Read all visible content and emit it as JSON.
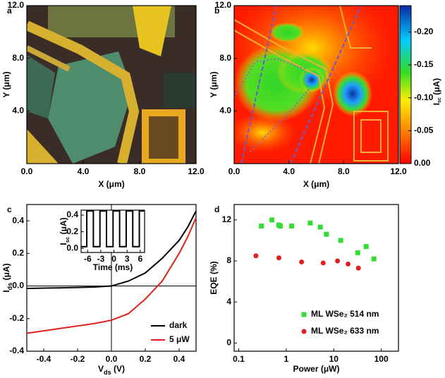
{
  "chart_data": [
    {
      "type": "image",
      "panel": "a",
      "xlabel": "X (μm)",
      "ylabel": "Y (μm)",
      "xlim": [
        0,
        12
      ],
      "ylim": [
        0,
        12
      ],
      "xticks": [
        {
          "value": 0,
          "label": "0.0"
        },
        {
          "value": 4,
          "label": "4.0"
        },
        {
          "value": 8,
          "label": "8.0"
        },
        {
          "value": 12,
          "label": "12.0"
        }
      ],
      "yticks": [
        {
          "value": 4,
          "label": "4.0"
        },
        {
          "value": 8,
          "label": "8.0"
        },
        {
          "value": 12,
          "label": "12.0"
        }
      ]
    },
    {
      "type": "heatmap",
      "panel": "b",
      "xlabel": "X (μm)",
      "ylabel": "Y (μm)",
      "xlim": [
        0,
        12
      ],
      "ylim": [
        0,
        12
      ],
      "xticks": [
        {
          "value": 0,
          "label": "0.0"
        },
        {
          "value": 4,
          "label": "4.0"
        },
        {
          "value": 8,
          "label": "8.0"
        },
        {
          "value": 12,
          "label": "12.0"
        }
      ],
      "yticks": [
        {
          "value": 4,
          "label": "4.0"
        },
        {
          "value": 8,
          "label": "8.0"
        },
        {
          "value": 12,
          "label": "12.0"
        }
      ],
      "clim": [
        0,
        -0.24
      ],
      "cticks": [
        {
          "value": 0,
          "label": "0.00"
        },
        {
          "value": -0.05,
          "label": "-0.05"
        },
        {
          "value": -0.1,
          "label": "-0.10"
        },
        {
          "value": -0.15,
          "label": "-0.15"
        },
        {
          "value": -0.2,
          "label": "-0.20"
        }
      ],
      "colorbar_label": {
        "text": "I",
        "sub": "sc",
        "unit": " (μA)"
      }
    },
    {
      "type": "line",
      "panel": "c",
      "xlabel": {
        "text": "V",
        "sub": "ds",
        "unit": " (V)"
      },
      "ylabel": {
        "text": "I",
        "sub": "ds",
        "unit": " (μA)"
      },
      "xlim": [
        -0.5,
        0.5
      ],
      "ylim": [
        -0.4,
        0.5
      ],
      "xticks": [
        -0.4,
        -0.2,
        {
          "value": 0,
          "label": "0.0"
        },
        0.2,
        0.4
      ],
      "yticks": [
        -0.4,
        -0.2,
        {
          "value": 0,
          "label": "0.0"
        },
        0.2,
        0.4
      ],
      "ref_lines": {
        "x": 0,
        "y": 0
      },
      "x": [
        -0.5,
        -0.4,
        -0.3,
        -0.2,
        -0.1,
        0,
        0.1,
        0.2,
        0.3,
        0.4,
        0.45,
        0.5
      ],
      "series": [
        {
          "name": "dark",
          "color": "#000000",
          "values": [
            -0.015,
            -0.013,
            -0.011,
            -0.009,
            -0.006,
            0,
            0.03,
            0.08,
            0.17,
            0.28,
            0.36,
            0.46
          ]
        },
        {
          "name": "5 μW",
          "color": "#e0201b",
          "values": [
            -0.29,
            -0.275,
            -0.26,
            -0.245,
            -0.23,
            -0.21,
            -0.17,
            -0.08,
            0.03,
            0.2,
            0.3,
            0.42
          ]
        }
      ],
      "legend": "lower right",
      "inset": {
        "type": "line",
        "xlabel": "Time (ms)",
        "ylabel": {
          "text": "I",
          "sub": "sc",
          "unit": " (μA)"
        },
        "xlim": [
          -7.5,
          7
        ],
        "ylim": [
          -0.05,
          0.46
        ],
        "xticks": [
          -6,
          -3,
          0,
          3,
          6
        ],
        "yticks": [
          {
            "value": 0,
            "label": "0.0"
          },
          0.2,
          0.4
        ],
        "x": [
          -7.5,
          -6.2,
          -6.2,
          -4.7,
          -4.7,
          -3.2,
          -3.2,
          -1.7,
          -1.7,
          -0.2,
          -0.2,
          1.3,
          1.3,
          2.8,
          2.8,
          4.3,
          4.3,
          5.8,
          5.8,
          7
        ],
        "series": [
          {
            "color": "#000000",
            "values": [
              0.02,
              0.02,
              0.45,
              0.45,
              0.02,
              0.02,
              0.45,
              0.45,
              0.02,
              0.02,
              0.45,
              0.45,
              0.02,
              0.02,
              0.45,
              0.45,
              0.02,
              0.02,
              0.45,
              0.45
            ]
          }
        ]
      }
    },
    {
      "type": "scatter",
      "panel": "d",
      "xlabel": "Power (μW)",
      "ylabel": "EQE (%)",
      "xscale": "log",
      "xlim": [
        0.08,
        230
      ],
      "ylim": [
        -0.8,
        13.5
      ],
      "xticks": [
        0.1,
        1,
        10,
        100
      ],
      "yticks": [
        0,
        4,
        8,
        12
      ],
      "series": [
        {
          "name": "ML WSe₂ 514 nm",
          "color": "#33dd33",
          "marker": "square",
          "x": [
            0.3,
            0.5,
            0.7,
            0.75,
            1.3,
            3.2,
            5.2,
            7,
            14,
            32,
            48,
            70
          ],
          "values": [
            11.4,
            12.0,
            11.5,
            11.4,
            11.4,
            11.7,
            11.3,
            10.6,
            10.0,
            8.8,
            9.4,
            8.2
          ]
        },
        {
          "name": "ML WSe₂ 633 nm",
          "color": "#e02020",
          "marker": "circle",
          "x": [
            0.23,
            0.7,
            2.1,
            6,
            12,
            20,
            33
          ],
          "values": [
            8.5,
            8.3,
            7.9,
            7.8,
            8.0,
            7.7,
            7.3
          ]
        }
      ],
      "legend": "lower right"
    }
  ]
}
